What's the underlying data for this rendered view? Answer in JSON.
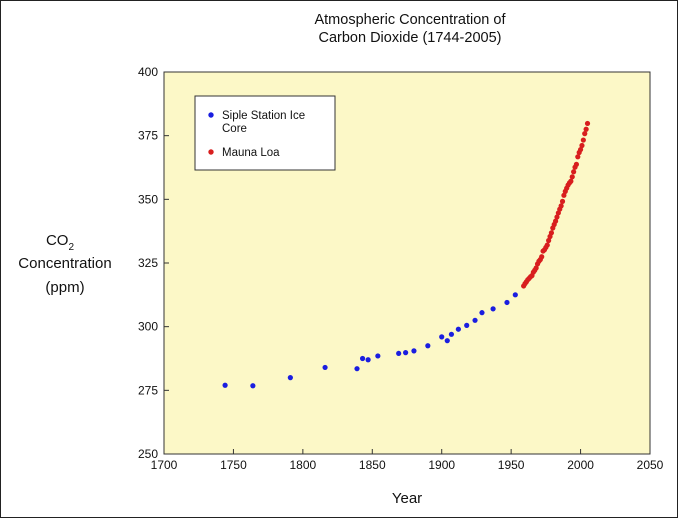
{
  "chart_data": {
    "type": "scatter",
    "title_lines": [
      "Atmospheric Concentration of",
      "Carbon Dioxide (1744-2005)"
    ],
    "xlabel": "Year",
    "ylabel_lines": [
      "CO",
      "2",
      "Concentration",
      "(ppm)"
    ],
    "xlim": [
      1700,
      2050
    ],
    "ylim": [
      250,
      400
    ],
    "xticks": [
      1700,
      1750,
      1800,
      1850,
      1900,
      1950,
      2000,
      2050
    ],
    "yticks": [
      250,
      275,
      300,
      325,
      350,
      375,
      400
    ],
    "grid": false,
    "plot_background": "#fcf8c7",
    "legend_position": "top-left",
    "series": [
      {
        "name_lines": [
          "Siple Station Ice",
          "Core"
        ],
        "color": "#1a1ee0",
        "points": [
          [
            1744,
            277.0
          ],
          [
            1764,
            276.8
          ],
          [
            1791,
            280.0
          ],
          [
            1816,
            284.0
          ],
          [
            1839,
            283.5
          ],
          [
            1843,
            287.5
          ],
          [
            1847,
            287.0
          ],
          [
            1854,
            288.5
          ],
          [
            1869,
            289.5
          ],
          [
            1874,
            289.8
          ],
          [
            1880,
            290.5
          ],
          [
            1890,
            292.5
          ],
          [
            1900,
            296.0
          ],
          [
            1904,
            294.5
          ],
          [
            1907,
            297.0
          ],
          [
            1912,
            299.0
          ],
          [
            1918,
            300.5
          ],
          [
            1924,
            302.5
          ],
          [
            1929,
            305.5
          ],
          [
            1937,
            307.0
          ],
          [
            1947,
            309.5
          ],
          [
            1953,
            312.5
          ]
        ]
      },
      {
        "name_lines": [
          "Mauna Loa"
        ],
        "color": "#d81e1e",
        "points": [
          [
            1959,
            315.98
          ],
          [
            1960,
            316.91
          ],
          [
            1961,
            317.64
          ],
          [
            1962,
            318.45
          ],
          [
            1963,
            318.99
          ],
          [
            1964,
            319.62
          ],
          [
            1965,
            320.04
          ],
          [
            1966,
            321.38
          ],
          [
            1967,
            322.16
          ],
          [
            1968,
            323.04
          ],
          [
            1969,
            324.62
          ],
          [
            1970,
            325.68
          ],
          [
            1971,
            326.32
          ],
          [
            1972,
            327.45
          ],
          [
            1973,
            329.68
          ],
          [
            1974,
            330.18
          ],
          [
            1975,
            331.11
          ],
          [
            1976,
            332.04
          ],
          [
            1977,
            333.83
          ],
          [
            1978,
            335.4
          ],
          [
            1979,
            336.84
          ],
          [
            1980,
            338.75
          ],
          [
            1981,
            340.11
          ],
          [
            1982,
            341.45
          ],
          [
            1983,
            343.05
          ],
          [
            1984,
            344.66
          ],
          [
            1985,
            346.12
          ],
          [
            1986,
            347.42
          ],
          [
            1987,
            349.19
          ],
          [
            1988,
            351.57
          ],
          [
            1989,
            353.12
          ],
          [
            1990,
            354.39
          ],
          [
            1991,
            355.61
          ],
          [
            1992,
            356.45
          ],
          [
            1993,
            357.1
          ],
          [
            1994,
            358.83
          ],
          [
            1995,
            360.82
          ],
          [
            1996,
            362.61
          ],
          [
            1997,
            363.73
          ],
          [
            1998,
            366.7
          ],
          [
            1999,
            368.38
          ],
          [
            2000,
            369.55
          ],
          [
            2001,
            371.14
          ],
          [
            2002,
            373.28
          ],
          [
            2003,
            375.8
          ],
          [
            2004,
            377.52
          ],
          [
            2005,
            379.8
          ]
        ]
      }
    ]
  }
}
